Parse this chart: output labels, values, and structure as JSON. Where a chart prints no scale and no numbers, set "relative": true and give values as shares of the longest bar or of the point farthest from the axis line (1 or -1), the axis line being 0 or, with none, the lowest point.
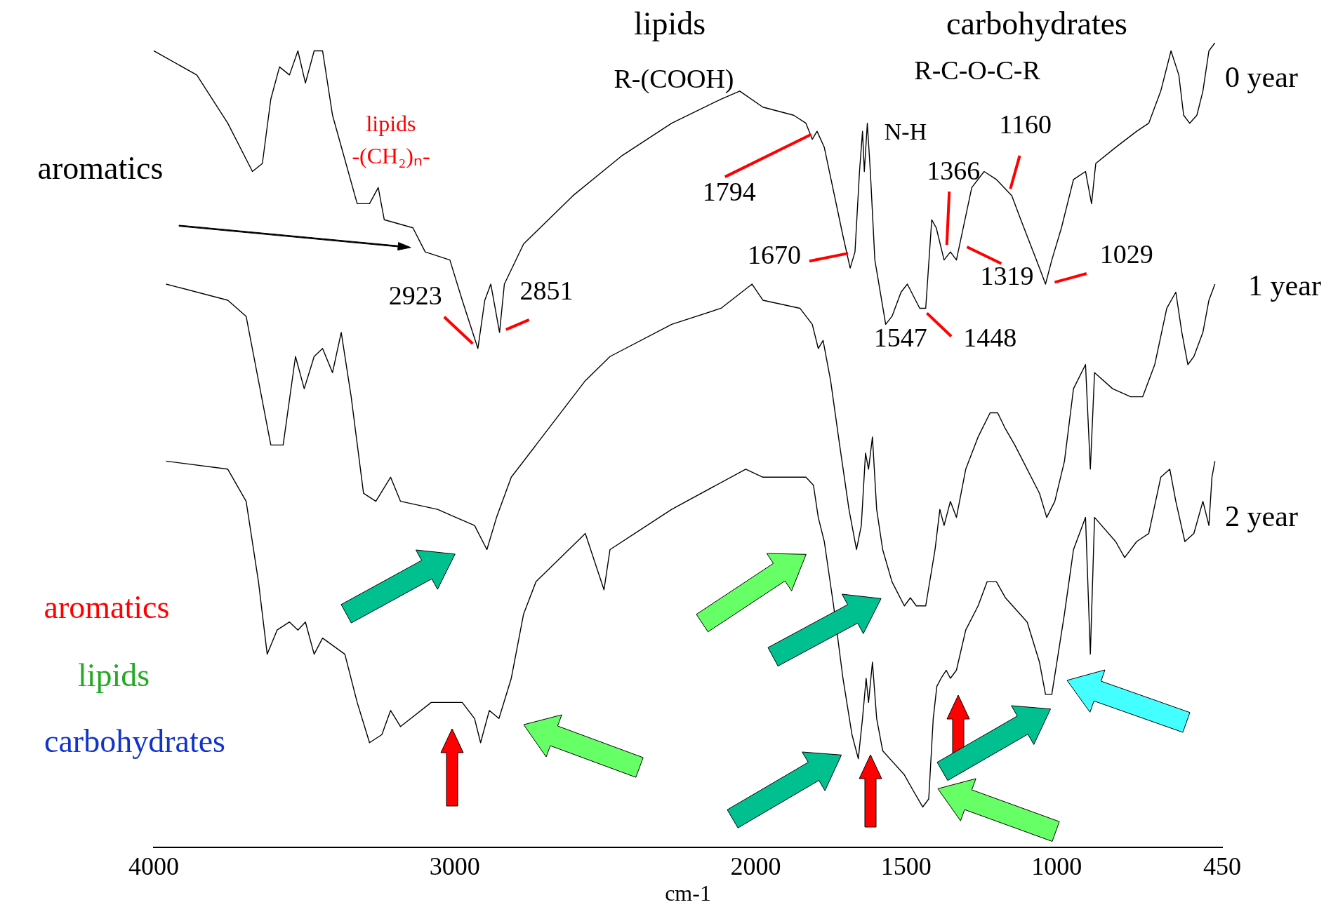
{
  "chart_data": {
    "type": "line",
    "relative": true,
    "legend": false,
    "xlabel": "cm-1",
    "xlim": [
      4000,
      450
    ],
    "xticks": [
      4000,
      3000,
      2000,
      1500,
      1000,
      450
    ],
    "series": [
      {
        "name": "0 year",
        "color": "#000000",
        "x": [
          4000,
          3857,
          3754,
          3672,
          3639,
          3611,
          3582,
          3549,
          3521,
          3496,
          3467,
          3439,
          3406,
          3324,
          3283,
          3254,
          3234,
          3139,
          3098,
          3016,
          2975,
          2923,
          2900,
          2880,
          2851,
          2835,
          2771,
          2607,
          2443,
          2279,
          2115,
          2053,
          1976,
          1874,
          1833,
          1812,
          1796,
          1772,
          1710,
          1686,
          1670,
          1655,
          1645,
          1639,
          1629,
          1619,
          1604,
          1568,
          1547,
          1517,
          1496,
          1455,
          1435,
          1415,
          1400,
          1374,
          1353,
          1333,
          1282,
          1241,
          1200,
          1149,
          1119,
          1057,
          1037,
          1016,
          984,
          944,
          904,
          884,
          870,
          804,
          734,
          694,
          654,
          620,
          594,
          578,
          558,
          534,
          514,
          494,
          474
        ],
        "values": [
          0.99,
          0.96,
          0.9,
          0.84,
          0.85,
          0.93,
          0.97,
          0.96,
          0.99,
          0.95,
          0.99,
          0.99,
          0.91,
          0.8,
          0.8,
          0.82,
          0.78,
          0.77,
          0.74,
          0.73,
          0.68,
          0.62,
          0.68,
          0.7,
          0.64,
          0.7,
          0.75,
          0.81,
          0.86,
          0.9,
          0.93,
          0.94,
          0.92,
          0.91,
          0.9,
          0.88,
          0.89,
          0.87,
          0.76,
          0.72,
          0.74,
          0.84,
          0.89,
          0.84,
          0.9,
          0.84,
          0.73,
          0.65,
          0.66,
          0.69,
          0.7,
          0.67,
          0.67,
          0.78,
          0.77,
          0.73,
          0.74,
          0.73,
          0.82,
          0.84,
          0.83,
          0.81,
          0.78,
          0.72,
          0.7,
          0.73,
          0.77,
          0.83,
          0.84,
          0.8,
          0.85,
          0.87,
          0.89,
          0.9,
          0.94,
          0.99,
          0.96,
          0.91,
          0.9,
          0.91,
          0.94,
          0.99,
          1.0
        ]
      },
      {
        "name": "1 year",
        "color": "#000000",
        "x": [
          3959,
          3754,
          3693,
          3652,
          3611,
          3570,
          3529,
          3500,
          3467,
          3439,
          3406,
          3377,
          3344,
          3303,
          3262,
          3213,
          3180,
          3057,
          2996,
          2934,
          2893,
          2861,
          2812,
          2730,
          2566,
          2484,
          2279,
          2115,
          2012,
          1976,
          1853,
          1812,
          1792,
          1776,
          1751,
          1721,
          1690,
          1665,
          1649,
          1635,
          1625,
          1612,
          1598,
          1578,
          1547,
          1506,
          1486,
          1466,
          1435,
          1404,
          1388,
          1374,
          1353,
          1333,
          1302,
          1261,
          1221,
          1196,
          1170,
          1139,
          1057,
          1033,
          1006,
          974,
          944,
          904,
          888,
          874,
          814,
          754,
          714,
          674,
          634,
          604,
          584,
          564,
          544,
          514,
          494,
          474
        ],
        "values": [
          0.7,
          0.68,
          0.66,
          0.58,
          0.5,
          0.5,
          0.61,
          0.57,
          0.61,
          0.62,
          0.59,
          0.64,
          0.56,
          0.44,
          0.43,
          0.46,
          0.43,
          0.42,
          0.41,
          0.4,
          0.37,
          0.41,
          0.46,
          0.5,
          0.58,
          0.61,
          0.65,
          0.67,
          0.7,
          0.68,
          0.67,
          0.65,
          0.62,
          0.63,
          0.58,
          0.5,
          0.42,
          0.37,
          0.4,
          0.49,
          0.47,
          0.51,
          0.42,
          0.37,
          0.33,
          0.3,
          0.31,
          0.3,
          0.3,
          0.37,
          0.42,
          0.4,
          0.43,
          0.41,
          0.47,
          0.51,
          0.54,
          0.54,
          0.52,
          0.5,
          0.44,
          0.41,
          0.43,
          0.48,
          0.57,
          0.6,
          0.47,
          0.59,
          0.57,
          0.56,
          0.56,
          0.6,
          0.67,
          0.69,
          0.64,
          0.6,
          0.61,
          0.64,
          0.68,
          0.7
        ]
      },
      {
        "name": "2 year",
        "color": "#000000",
        "x": [
          3959,
          3754,
          3693,
          3652,
          3623,
          3590,
          3549,
          3521,
          3496,
          3467,
          3439,
          3365,
          3324,
          3283,
          3242,
          3213,
          3180,
          3078,
          2975,
          2934,
          2914,
          2885,
          2853,
          2812,
          2771,
          2730,
          2566,
          2504,
          2484,
          2279,
          2033,
          1976,
          1833,
          1808,
          1792,
          1772,
          1741,
          1710,
          1680,
          1659,
          1645,
          1633,
          1625,
          1612,
          1598,
          1578,
          1506,
          1476,
          1445,
          1425,
          1410,
          1398,
          1384,
          1367,
          1353,
          1333,
          1302,
          1261,
          1231,
          1200,
          1170,
          1098,
          1057,
          1037,
          1016,
          974,
          944,
          904,
          888,
          874,
          804,
          774,
          734,
          694,
          654,
          624,
          604,
          574,
          544,
          514,
          494,
          484,
          474
        ],
        "values": [
          0.48,
          0.47,
          0.43,
          0.33,
          0.24,
          0.27,
          0.28,
          0.27,
          0.28,
          0.24,
          0.26,
          0.24,
          0.18,
          0.13,
          0.14,
          0.17,
          0.15,
          0.18,
          0.18,
          0.16,
          0.13,
          0.17,
          0.16,
          0.21,
          0.29,
          0.33,
          0.39,
          0.32,
          0.37,
          0.42,
          0.47,
          0.46,
          0.46,
          0.45,
          0.41,
          0.38,
          0.3,
          0.21,
          0.14,
          0.11,
          0.16,
          0.21,
          0.18,
          0.23,
          0.16,
          0.12,
          0.09,
          0.07,
          0.05,
          0.06,
          0.16,
          0.2,
          0.21,
          0.22,
          0.21,
          0.22,
          0.27,
          0.3,
          0.33,
          0.33,
          0.31,
          0.28,
          0.23,
          0.19,
          0.19,
          0.29,
          0.37,
          0.41,
          0.24,
          0.41,
          0.38,
          0.36,
          0.38,
          0.39,
          0.46,
          0.47,
          0.43,
          0.38,
          0.39,
          0.43,
          0.4,
          0.46,
          0.48
        ]
      }
    ],
    "annotations": [
      "lipids",
      "R-(COOH)",
      "carbohydrates",
      "R-C-O-C-R",
      "aromatics",
      "lipids",
      "-(CH₂)ₙ-",
      "N-H",
      {
        "text": "1794",
        "x": 1794,
        "y": 0.89
      },
      {
        "text": "1670",
        "x": 1670,
        "y": 0.74
      },
      {
        "text": "1547",
        "x": 1547,
        "y": 0.66
      },
      {
        "text": "1448",
        "x": 1448,
        "y": 0.67
      },
      {
        "text": "1366",
        "x": 1366,
        "y": 0.74
      },
      {
        "text": "1319",
        "x": 1319,
        "y": 0.75
      },
      {
        "text": "1160",
        "x": 1160,
        "y": 0.81
      },
      {
        "text": "1029",
        "x": 1029,
        "y": 0.7
      },
      {
        "text": "2923",
        "x": 2923,
        "y": 0.62
      },
      {
        "text": "2851",
        "x": 2851,
        "y": 0.64
      },
      "aromatics",
      "lipids",
      "carbohydrates"
    ]
  }
}
